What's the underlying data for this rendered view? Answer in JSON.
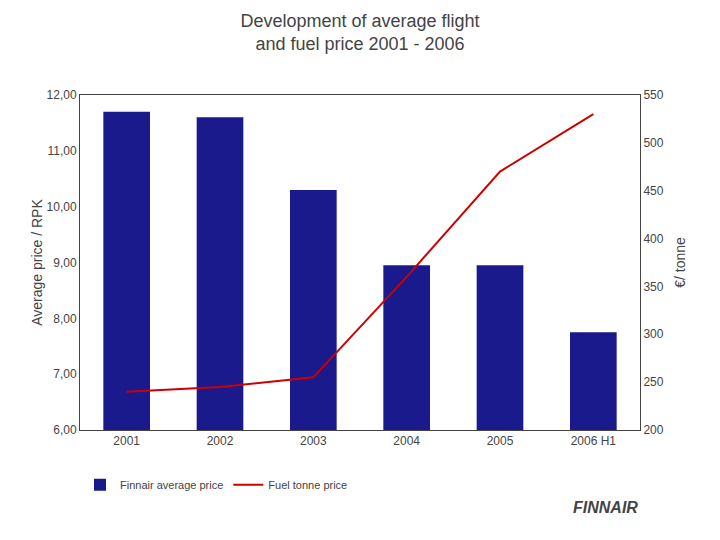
{
  "chart_data": {
    "type": "bar",
    "title": "Development of average flight\nand fuel price 2001 - 2006",
    "categories": [
      "2001",
      "2002",
      "2003",
      "2004",
      "2005",
      "2006 H1"
    ],
    "series": [
      {
        "name": "Finnair average price",
        "type": "bar",
        "color": "#1a1a8c",
        "values": [
          11.7,
          11.6,
          10.3,
          8.95,
          8.95,
          7.75
        ]
      },
      {
        "name": "Fuel tonne price",
        "type": "line",
        "color": "#cc0000",
        "axis": "y2",
        "values": [
          240,
          245,
          255,
          360,
          470,
          530
        ]
      }
    ],
    "ylabel": "Average price / RPK",
    "y2label": "€/ tonne",
    "ylim": [
      6.0,
      12.0
    ],
    "yticks": [
      {
        "value": 6.0,
        "label": "6,00"
      },
      {
        "value": 7.0,
        "label": "7,00"
      },
      {
        "value": 8.0,
        "label": "8,00"
      },
      {
        "value": 9.0,
        "label": "9,00"
      },
      {
        "value": 10.0,
        "label": "10,00"
      },
      {
        "value": 11.0,
        "label": "11,00"
      },
      {
        "value": 12.0,
        "label": "12,00"
      }
    ],
    "y2lim": [
      200,
      550
    ],
    "y2ticks": [
      200,
      250,
      300,
      350,
      400,
      450,
      500,
      550
    ],
    "grid": false,
    "legend": "bottom",
    "annotations": [
      {
        "text": "FINNAIR"
      }
    ]
  }
}
